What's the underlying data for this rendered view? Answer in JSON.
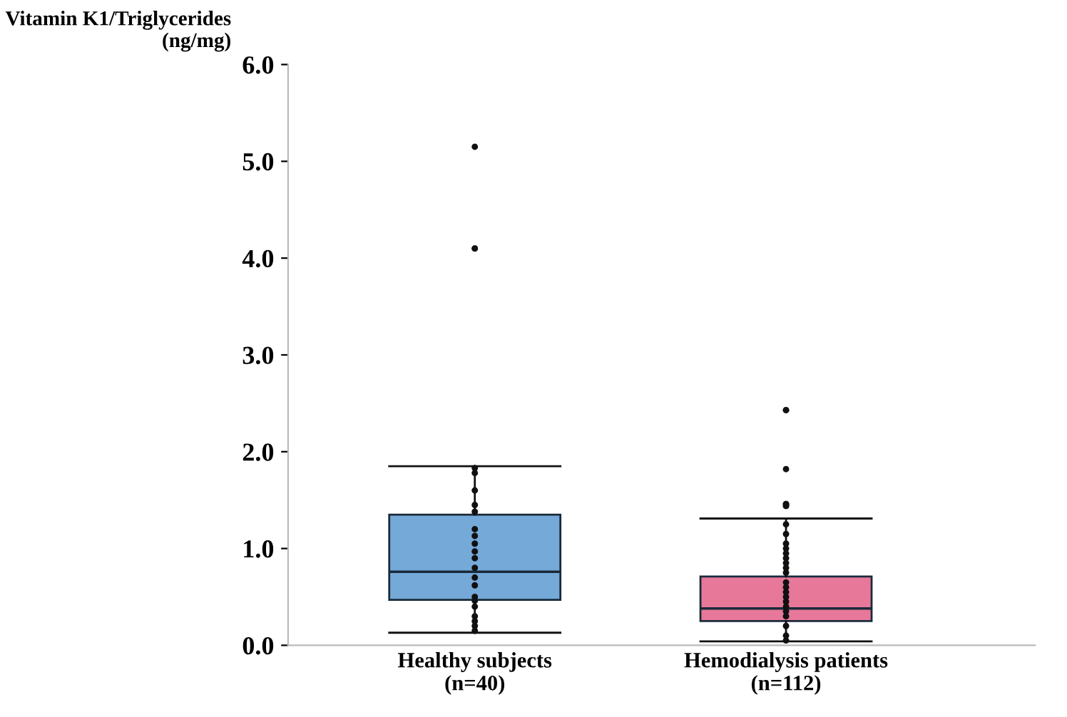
{
  "chart_data": {
    "type": "box",
    "ylabel": "Vitamin K1/Triglycerides\n(ng/mg)",
    "categories": [
      "Healthy subjects\n(n=40)",
      "Hemodialysis patients\n(n=112)"
    ],
    "colors": [
      "#74a9d8",
      "#e7789a"
    ],
    "boxes": [
      {
        "low": 0.13,
        "q1": 0.47,
        "median": 0.76,
        "q3": 1.35,
        "high": 1.85,
        "outliers": [
          5.15,
          4.1,
          4.1
        ]
      },
      {
        "low": 0.04,
        "q1": 0.25,
        "median": 0.38,
        "q3": 0.71,
        "high": 1.31,
        "outliers": [
          2.43,
          2.43,
          1.82,
          1.46,
          1.46,
          1.44,
          1.44
        ]
      }
    ],
    "series": [
      {
        "type": "scatter",
        "color": "#111111",
        "x": [
          "Healthy subjects\n(n=40)",
          "Healthy subjects\n(n=40)",
          "Healthy subjects\n(n=40)",
          "Healthy subjects\n(n=40)",
          "Healthy subjects\n(n=40)",
          "Healthy subjects\n(n=40)",
          "Healthy subjects\n(n=40)",
          "Healthy subjects\n(n=40)",
          "Healthy subjects\n(n=40)",
          "Healthy subjects\n(n=40)",
          "Healthy subjects\n(n=40)",
          "Healthy subjects\n(n=40)",
          "Healthy subjects\n(n=40)",
          "Healthy subjects\n(n=40)",
          "Healthy subjects\n(n=40)",
          "Healthy subjects\n(n=40)",
          "Healthy subjects\n(n=40)",
          "Healthy subjects\n(n=40)",
          "Healthy subjects\n(n=40)",
          "Healthy subjects\n(n=40)"
        ],
        "values": [
          1.83,
          1.78,
          1.6,
          1.45,
          1.38,
          1.2,
          1.13,
          1.05,
          0.97,
          0.9,
          0.8,
          0.7,
          0.62,
          0.5,
          0.46,
          0.4,
          0.3,
          0.25,
          0.2,
          0.15
        ]
      },
      {
        "type": "scatter",
        "color": "#111111",
        "x": [
          "Hemodialysis patients\n(n=112)",
          "Hemodialysis patients\n(n=112)",
          "Hemodialysis patients\n(n=112)",
          "Hemodialysis patients\n(n=112)",
          "Hemodialysis patients\n(n=112)",
          "Hemodialysis patients\n(n=112)",
          "Hemodialysis patients\n(n=112)",
          "Hemodialysis patients\n(n=112)",
          "Hemodialysis patients\n(n=112)",
          "Hemodialysis patients\n(n=112)",
          "Hemodialysis patients\n(n=112)",
          "Hemodialysis patients\n(n=112)",
          "Hemodialysis patients\n(n=112)",
          "Hemodialysis patients\n(n=112)",
          "Hemodialysis patients\n(n=112)",
          "Hemodialysis patients\n(n=112)",
          "Hemodialysis patients\n(n=112)",
          "Hemodialysis patients\n(n=112)",
          "Hemodialysis patients\n(n=112)",
          "Hemodialysis patients\n(n=112)"
        ],
        "values": [
          1.25,
          1.15,
          1.05,
          1.0,
          0.95,
          0.9,
          0.85,
          0.8,
          0.75,
          0.65,
          0.6,
          0.55,
          0.5,
          0.45,
          0.4,
          0.35,
          0.3,
          0.2,
          0.1,
          0.05
        ]
      }
    ],
    "ylim": [
      0,
      6
    ],
    "yticks": [
      {
        "value": 0,
        "label": "0.0"
      },
      {
        "value": 1,
        "label": "1.0"
      },
      {
        "value": 2,
        "label": "2.0"
      },
      {
        "value": 3,
        "label": "3.0"
      },
      {
        "value": 4,
        "label": "4.0"
      },
      {
        "value": 5,
        "label": "5.0"
      },
      {
        "value": 6,
        "label": "6.0"
      }
    ],
    "grid": false
  }
}
